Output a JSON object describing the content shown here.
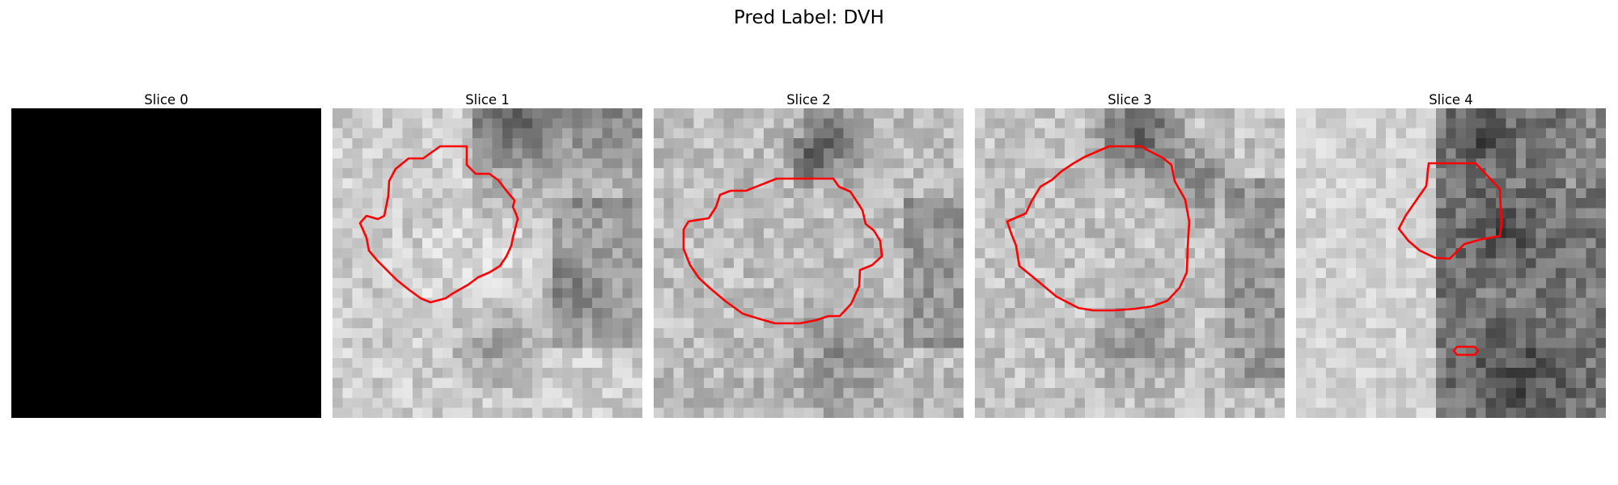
{
  "figure": {
    "title": "Pred Label: DVH"
  },
  "panels": [
    {
      "title": "Slice 0",
      "content": "all black",
      "contour": "none"
    },
    {
      "title": "Slice 1",
      "content": "noisy grayscale patch with red contour outline",
      "contour": "red"
    },
    {
      "title": "Slice 2",
      "content": "noisy grayscale patch with red contour outline",
      "contour": "red"
    },
    {
      "title": "Slice 3",
      "content": "noisy grayscale patch with red contour outline",
      "contour": "red"
    },
    {
      "title": "Slice 4",
      "content": "noisy grayscale patch with red contour outlines",
      "contour": "red"
    }
  ],
  "colors": {
    "contour": "#ff0000",
    "background": "#ffffff",
    "empty_slice": "#000000"
  }
}
